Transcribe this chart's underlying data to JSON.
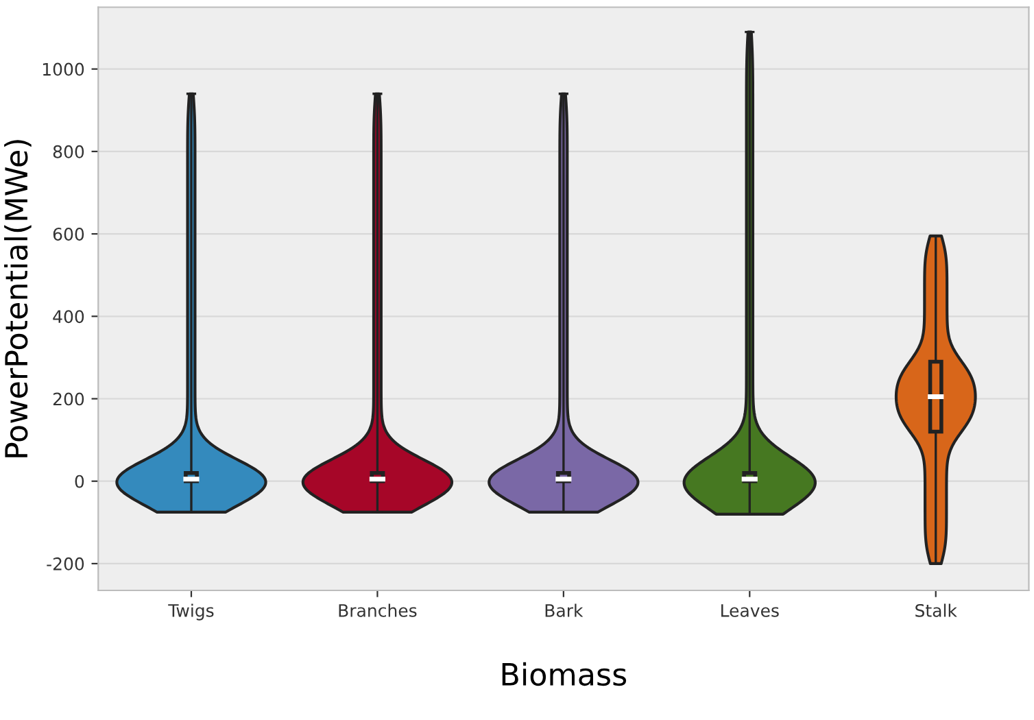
{
  "chart_data": {
    "type": "box",
    "xlabel": "Biomass",
    "ylabel": "PowerPotential(MWe)",
    "categories": [
      "Twigs",
      "Branches",
      "Bark",
      "Leaves",
      "Stalk"
    ],
    "colors": [
      "#348abd",
      "#a60628",
      "#7a68a6",
      "#467821",
      "#d8661a"
    ],
    "boxes": [
      {
        "low": -75,
        "q1": 0,
        "median": 5,
        "q3": 20,
        "high": 940
      },
      {
        "low": -75,
        "q1": 0,
        "median": 5,
        "q3": 20,
        "high": 940
      },
      {
        "low": -75,
        "q1": 0,
        "median": 5,
        "q3": 20,
        "high": 940
      },
      {
        "low": -80,
        "q1": 0,
        "median": 5,
        "q3": 20,
        "high": 1090
      },
      {
        "low": -200,
        "q1": 120,
        "median": 205,
        "q3": 290,
        "high": 595
      }
    ],
    "ylim": [
      -265,
      1150
    ],
    "yticks": [
      -200,
      0,
      200,
      400,
      600,
      800,
      1000
    ],
    "grid": "y"
  }
}
